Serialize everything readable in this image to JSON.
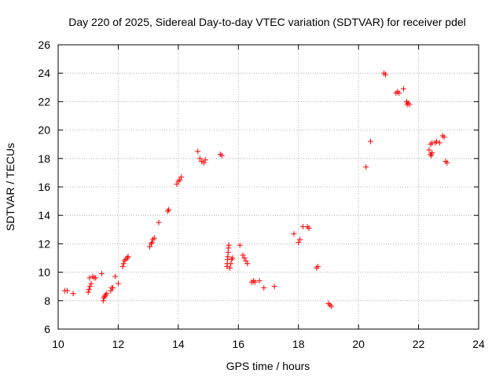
{
  "chart_data": {
    "type": "scatter",
    "title": "Day 220 of 2025, Sidereal Day-to-day VTEC variation (SDTVAR) for receiver pdel",
    "xlabel": "GPS time / hours",
    "ylabel": "SDTVAR / TECUs",
    "xlim": [
      10,
      24
    ],
    "ylim": [
      6,
      26
    ],
    "xticks": [
      "10",
      "12",
      "14",
      "16",
      "18",
      "20",
      "22",
      "24"
    ],
    "yticks": [
      "6",
      "8",
      "10",
      "12",
      "14",
      "16",
      "18",
      "20",
      "22",
      "24",
      "26"
    ],
    "grid": true,
    "marker": "+",
    "colors": {
      "points": "#ff0000",
      "grid": "#a0a0a0",
      "axis": "#000000"
    },
    "series": [
      {
        "name": "pdel",
        "points": [
          [
            10.22,
            8.7
          ],
          [
            10.3,
            8.7
          ],
          [
            10.5,
            8.5
          ],
          [
            11.0,
            8.6
          ],
          [
            11.03,
            8.8
          ],
          [
            11.06,
            9.0
          ],
          [
            11.1,
            9.2
          ],
          [
            11.05,
            9.6
          ],
          [
            11.15,
            9.7
          ],
          [
            11.2,
            9.6
          ],
          [
            11.25,
            9.6
          ],
          [
            11.45,
            9.9
          ],
          [
            11.5,
            8.0
          ],
          [
            11.52,
            8.2
          ],
          [
            11.55,
            8.3
          ],
          [
            11.58,
            8.4
          ],
          [
            11.62,
            8.5
          ],
          [
            11.75,
            8.7
          ],
          [
            11.78,
            8.9
          ],
          [
            11.82,
            8.9
          ],
          [
            11.9,
            9.7
          ],
          [
            12.0,
            9.2
          ],
          [
            12.15,
            10.4
          ],
          [
            12.18,
            10.6
          ],
          [
            12.2,
            10.8
          ],
          [
            12.25,
            10.9
          ],
          [
            12.3,
            11.0
          ],
          [
            12.33,
            11.1
          ],
          [
            13.05,
            11.8
          ],
          [
            13.1,
            12.0
          ],
          [
            13.12,
            12.1
          ],
          [
            13.15,
            12.3
          ],
          [
            13.2,
            12.4
          ],
          [
            13.35,
            13.5
          ],
          [
            13.65,
            14.3
          ],
          [
            13.68,
            14.4
          ],
          [
            13.95,
            16.2
          ],
          [
            14.0,
            16.4
          ],
          [
            14.05,
            16.5
          ],
          [
            14.1,
            16.7
          ],
          [
            14.65,
            18.5
          ],
          [
            14.72,
            18.0
          ],
          [
            14.78,
            17.8
          ],
          [
            14.85,
            17.7
          ],
          [
            14.9,
            17.9
          ],
          [
            15.4,
            18.3
          ],
          [
            15.45,
            18.2
          ],
          [
            15.62,
            10.4
          ],
          [
            15.63,
            10.6
          ],
          [
            15.64,
            10.9
          ],
          [
            15.65,
            11.1
          ],
          [
            15.66,
            11.4
          ],
          [
            15.67,
            11.7
          ],
          [
            15.68,
            11.9
          ],
          [
            15.72,
            10.3
          ],
          [
            15.75,
            10.6
          ],
          [
            15.78,
            10.9
          ],
          [
            15.8,
            11.0
          ],
          [
            16.05,
            11.9
          ],
          [
            16.15,
            11.2
          ],
          [
            16.2,
            11.0
          ],
          [
            16.25,
            10.8
          ],
          [
            16.3,
            10.6
          ],
          [
            16.45,
            9.3
          ],
          [
            16.5,
            9.4
          ],
          [
            16.55,
            9.3
          ],
          [
            16.7,
            9.4
          ],
          [
            16.85,
            8.9
          ],
          [
            17.2,
            9.0
          ],
          [
            17.85,
            12.7
          ],
          [
            18.0,
            12.1
          ],
          [
            18.05,
            12.3
          ],
          [
            18.15,
            13.2
          ],
          [
            18.3,
            13.2
          ],
          [
            18.35,
            13.1
          ],
          [
            18.6,
            10.3
          ],
          [
            18.65,
            10.4
          ],
          [
            19.0,
            7.8
          ],
          [
            19.05,
            7.7
          ],
          [
            19.1,
            7.6
          ],
          [
            20.25,
            17.4
          ],
          [
            20.4,
            19.2
          ],
          [
            20.85,
            24.0
          ],
          [
            20.9,
            23.9
          ],
          [
            21.25,
            22.6
          ],
          [
            21.3,
            22.7
          ],
          [
            21.35,
            22.6
          ],
          [
            21.5,
            22.9
          ],
          [
            21.6,
            22.0
          ],
          [
            21.62,
            21.8
          ],
          [
            21.65,
            21.9
          ],
          [
            21.7,
            21.8
          ],
          [
            22.35,
            18.6
          ],
          [
            22.4,
            18.3
          ],
          [
            22.42,
            18.2
          ],
          [
            22.45,
            18.4
          ],
          [
            22.4,
            19.0
          ],
          [
            22.45,
            19.1
          ],
          [
            22.55,
            19.1
          ],
          [
            22.6,
            19.2
          ],
          [
            22.7,
            19.1
          ],
          [
            22.8,
            19.6
          ],
          [
            22.85,
            19.5
          ],
          [
            22.9,
            17.8
          ],
          [
            22.95,
            17.7
          ]
        ]
      }
    ]
  }
}
